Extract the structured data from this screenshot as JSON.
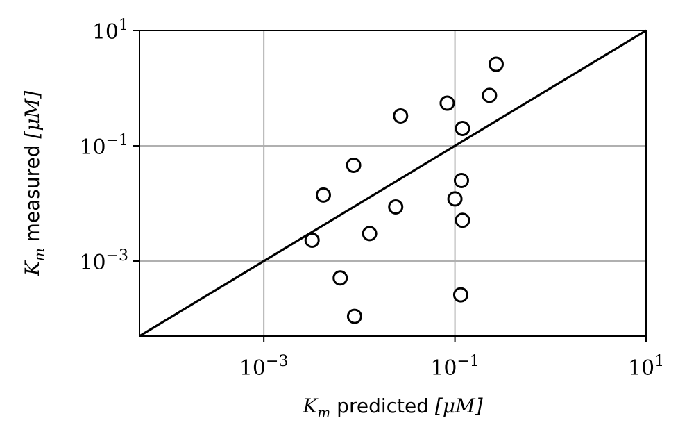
{
  "chart_data": {
    "type": "scatter",
    "title": "",
    "xlabel": {
      "math": "K",
      "subscript": "m",
      "word": "predicted",
      "unit_math": "[μM]"
    },
    "ylabel": {
      "math": "K",
      "subscript": "m",
      "word": "measured",
      "unit_math": "[μM]"
    },
    "xscale": "log",
    "yscale": "log",
    "xlim": [
      5e-05,
      10
    ],
    "ylim": [
      5e-05,
      10
    ],
    "grid": true,
    "x_ticks": [
      {
        "value": 0.001,
        "base": "10",
        "exp": "−3"
      },
      {
        "value": 0.1,
        "base": "10",
        "exp": "−1"
      },
      {
        "value": 10,
        "base": "10",
        "exp": "1"
      }
    ],
    "y_ticks": [
      {
        "value": 0.001,
        "base": "10",
        "exp": "−3"
      },
      {
        "value": 0.1,
        "base": "10",
        "exp": "−1"
      },
      {
        "value": 10,
        "base": "10",
        "exp": "1"
      }
    ],
    "reference_line": {
      "type": "identity",
      "from": 5e-05,
      "to": 10
    },
    "series": [
      {
        "marker": "open-circle",
        "points": [
          {
            "x": 0.27,
            "y": 2.6
          },
          {
            "x": 0.23,
            "y": 0.75
          },
          {
            "x": 0.083,
            "y": 0.55
          },
          {
            "x": 0.027,
            "y": 0.33
          },
          {
            "x": 0.12,
            "y": 0.2
          },
          {
            "x": 0.0087,
            "y": 0.046
          },
          {
            "x": 0.117,
            "y": 0.025
          },
          {
            "x": 0.0042,
            "y": 0.014
          },
          {
            "x": 0.1,
            "y": 0.012
          },
          {
            "x": 0.024,
            "y": 0.0087
          },
          {
            "x": 0.12,
            "y": 0.0051
          },
          {
            "x": 0.0128,
            "y": 0.003
          },
          {
            "x": 0.0032,
            "y": 0.0023
          },
          {
            "x": 0.0063,
            "y": 0.00051
          },
          {
            "x": 0.115,
            "y": 0.00026
          },
          {
            "x": 0.0089,
            "y": 0.00011
          }
        ]
      }
    ]
  }
}
